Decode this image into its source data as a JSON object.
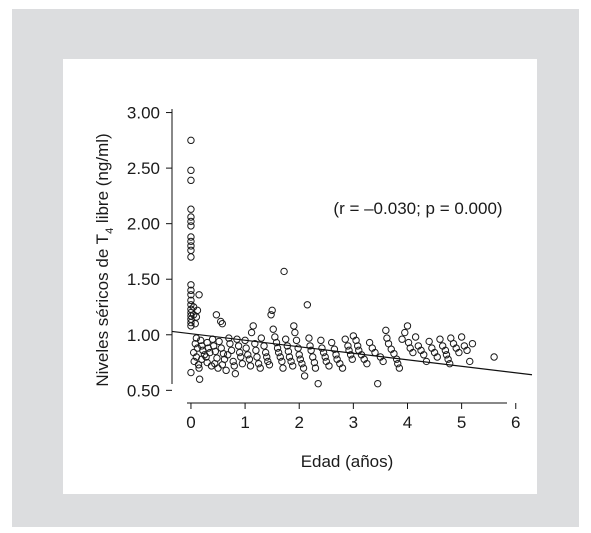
{
  "chart_data": {
    "type": "scatter",
    "title": "",
    "xlabel": "Edad (años)",
    "ylabel_main": "Niveles séricos de T",
    "ylabel_sub": "4",
    "ylabel_tail": " libre (ng/ml)",
    "xlim": [
      -0.35,
      6.3
    ],
    "ylim": [
      0.44,
      3.05
    ],
    "xticks": [
      0,
      1,
      2,
      3,
      4,
      5,
      6
    ],
    "xtick_labels": [
      "0",
      "1",
      "2",
      "3",
      "4",
      "5",
      "6"
    ],
    "yticks": [
      0.5,
      1.0,
      1.5,
      2.0,
      2.5,
      3.0
    ],
    "ytick_labels": [
      "0.50",
      "1.00",
      "1.50",
      "2.00",
      "2.50",
      "3.00"
    ],
    "annotation": "(r = –0.030; p = 0.000)",
    "regression_line": {
      "x": [
        -0.35,
        6.3
      ],
      "y": [
        1.03,
        0.64
      ]
    },
    "points": [
      [
        0,
        2.75
      ],
      [
        0,
        2.48
      ],
      [
        0,
        2.39
      ],
      [
        0,
        2.13
      ],
      [
        0,
        2.06
      ],
      [
        0,
        2.02
      ],
      [
        0,
        1.98
      ],
      [
        0,
        1.88
      ],
      [
        0,
        1.84
      ],
      [
        0,
        1.8
      ],
      [
        0,
        1.76
      ],
      [
        0,
        1.7
      ],
      [
        0,
        1.45
      ],
      [
        0,
        1.4
      ],
      [
        0,
        1.36
      ],
      [
        0,
        1.31
      ],
      [
        0,
        1.27
      ],
      [
        0,
        1.23
      ],
      [
        0,
        1.2
      ],
      [
        0,
        1.17
      ],
      [
        0,
        1.14
      ],
      [
        0,
        1.11
      ],
      [
        0,
        1.08
      ],
      [
        0,
        0.66
      ],
      [
        0.05,
        1.25
      ],
      [
        0.05,
        1.18
      ],
      [
        0.08,
        1.1
      ],
      [
        0.1,
        1.16
      ],
      [
        0.12,
        1.22
      ],
      [
        0.15,
        1.36
      ],
      [
        0.1,
        0.97
      ],
      [
        0.08,
        0.92
      ],
      [
        0.12,
        0.88
      ],
      [
        0.05,
        0.84
      ],
      [
        0.1,
        0.8
      ],
      [
        0.06,
        0.76
      ],
      [
        0.14,
        0.73
      ],
      [
        0.18,
        0.95
      ],
      [
        0.2,
        0.9
      ],
      [
        0.22,
        0.86
      ],
      [
        0.25,
        0.82
      ],
      [
        0.2,
        0.78
      ],
      [
        0.15,
        0.7
      ],
      [
        0.16,
        0.6
      ],
      [
        0.3,
        0.93
      ],
      [
        0.32,
        0.88
      ],
      [
        0.35,
        0.84
      ],
      [
        0.28,
        0.8
      ],
      [
        0.3,
        0.75
      ],
      [
        0.38,
        0.72
      ],
      [
        0.4,
        0.96
      ],
      [
        0.42,
        0.9
      ],
      [
        0.45,
        0.85
      ],
      [
        0.48,
        0.79
      ],
      [
        0.44,
        0.74
      ],
      [
        0.5,
        0.7
      ],
      [
        0.47,
        1.18
      ],
      [
        0.55,
        1.12
      ],
      [
        0.58,
        1.1
      ],
      [
        0.52,
        0.94
      ],
      [
        0.56,
        0.88
      ],
      [
        0.6,
        0.83
      ],
      [
        0.62,
        0.78
      ],
      [
        0.58,
        0.73
      ],
      [
        0.65,
        0.68
      ],
      [
        0.7,
        0.97
      ],
      [
        0.72,
        0.92
      ],
      [
        0.75,
        0.86
      ],
      [
        0.68,
        0.82
      ],
      [
        0.78,
        0.76
      ],
      [
        0.8,
        0.72
      ],
      [
        0.82,
        0.65
      ],
      [
        0.85,
        0.96
      ],
      [
        0.88,
        0.9
      ],
      [
        0.9,
        0.84
      ],
      [
        0.92,
        0.8
      ],
      [
        0.95,
        0.74
      ],
      [
        1.0,
        0.95
      ],
      [
        1.02,
        0.88
      ],
      [
        1.05,
        0.82
      ],
      [
        1.08,
        0.78
      ],
      [
        1.1,
        0.72
      ],
      [
        1.12,
        1.02
      ],
      [
        1.15,
        1.08
      ],
      [
        1.18,
        0.92
      ],
      [
        1.2,
        0.86
      ],
      [
        1.22,
        0.8
      ],
      [
        1.25,
        0.74
      ],
      [
        1.28,
        0.7
      ],
      [
        1.3,
        0.97
      ],
      [
        1.35,
        0.9
      ],
      [
        1.38,
        0.84
      ],
      [
        1.4,
        0.8
      ],
      [
        1.42,
        0.76
      ],
      [
        1.45,
        0.73
      ],
      [
        1.5,
        1.22
      ],
      [
        1.48,
        1.18
      ],
      [
        1.52,
        1.05
      ],
      [
        1.55,
        0.98
      ],
      [
        1.58,
        0.93
      ],
      [
        1.6,
        0.88
      ],
      [
        1.62,
        0.84
      ],
      [
        1.65,
        0.8
      ],
      [
        1.68,
        0.76
      ],
      [
        1.7,
        0.7
      ],
      [
        1.72,
        1.57
      ],
      [
        1.75,
        0.96
      ],
      [
        1.78,
        0.9
      ],
      [
        1.8,
        0.85
      ],
      [
        1.82,
        0.8
      ],
      [
        1.85,
        0.76
      ],
      [
        1.88,
        0.72
      ],
      [
        1.9,
        1.08
      ],
      [
        1.92,
        1.02
      ],
      [
        1.95,
        0.95
      ],
      [
        1.98,
        0.88
      ],
      [
        2.0,
        0.82
      ],
      [
        2.02,
        0.78
      ],
      [
        2.05,
        0.74
      ],
      [
        2.08,
        0.7
      ],
      [
        2.1,
        0.63
      ],
      [
        2.15,
        1.27
      ],
      [
        2.18,
        0.97
      ],
      [
        2.2,
        0.9
      ],
      [
        2.22,
        0.86
      ],
      [
        2.25,
        0.8
      ],
      [
        2.28,
        0.75
      ],
      [
        2.3,
        0.7
      ],
      [
        2.35,
        0.56
      ],
      [
        2.4,
        0.95
      ],
      [
        2.42,
        0.88
      ],
      [
        2.45,
        0.84
      ],
      [
        2.48,
        0.8
      ],
      [
        2.5,
        0.76
      ],
      [
        2.55,
        0.72
      ],
      [
        2.6,
        0.93
      ],
      [
        2.65,
        0.87
      ],
      [
        2.68,
        0.82
      ],
      [
        2.7,
        0.78
      ],
      [
        2.75,
        0.74
      ],
      [
        2.8,
        0.7
      ],
      [
        2.85,
        0.96
      ],
      [
        2.9,
        0.9
      ],
      [
        2.92,
        0.86
      ],
      [
        2.95,
        0.82
      ],
      [
        2.98,
        0.78
      ],
      [
        3.0,
        0.99
      ],
      [
        3.05,
        0.95
      ],
      [
        3.08,
        0.9
      ],
      [
        3.1,
        0.86
      ],
      [
        3.15,
        0.82
      ],
      [
        3.2,
        0.78
      ],
      [
        3.25,
        0.74
      ],
      [
        3.3,
        0.93
      ],
      [
        3.35,
        0.88
      ],
      [
        3.4,
        0.84
      ],
      [
        3.45,
        0.56
      ],
      [
        3.5,
        0.8
      ],
      [
        3.55,
        0.76
      ],
      [
        3.6,
        1.04
      ],
      [
        3.62,
        0.97
      ],
      [
        3.65,
        0.92
      ],
      [
        3.7,
        0.87
      ],
      [
        3.75,
        0.83
      ],
      [
        3.8,
        0.78
      ],
      [
        3.82,
        0.74
      ],
      [
        3.85,
        0.7
      ],
      [
        3.9,
        0.96
      ],
      [
        3.95,
        1.02
      ],
      [
        4.0,
        1.08
      ],
      [
        4.02,
        0.93
      ],
      [
        4.05,
        0.88
      ],
      [
        4.1,
        0.84
      ],
      [
        4.15,
        0.98
      ],
      [
        4.2,
        0.9
      ],
      [
        4.25,
        0.86
      ],
      [
        4.3,
        0.82
      ],
      [
        4.35,
        0.76
      ],
      [
        4.4,
        0.94
      ],
      [
        4.45,
        0.88
      ],
      [
        4.5,
        0.84
      ],
      [
        4.55,
        0.8
      ],
      [
        4.6,
        0.96
      ],
      [
        4.65,
        0.9
      ],
      [
        4.7,
        0.86
      ],
      [
        4.72,
        0.82
      ],
      [
        4.75,
        0.78
      ],
      [
        4.78,
        0.74
      ],
      [
        4.8,
        0.97
      ],
      [
        4.85,
        0.92
      ],
      [
        4.9,
        0.88
      ],
      [
        4.95,
        0.84
      ],
      [
        5.0,
        0.98
      ],
      [
        5.05,
        0.9
      ],
      [
        5.1,
        0.86
      ],
      [
        5.15,
        0.76
      ],
      [
        5.2,
        0.92
      ],
      [
        5.6,
        0.8
      ]
    ]
  }
}
